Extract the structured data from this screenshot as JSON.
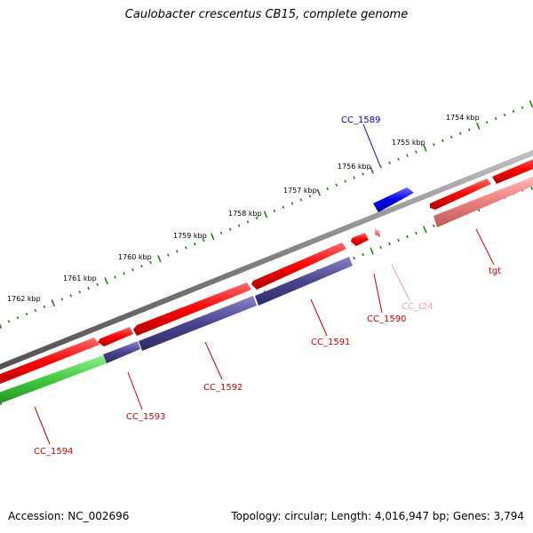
{
  "title": "Caulobacter crescentus CB15, complete genome",
  "footer": {
    "accession": "Accession: NC_002696",
    "summary": "Topology: circular; Length: 4,016,947 bp; Genes: 3,794"
  },
  "colors": {
    "backbone": "#808080",
    "ruler": "#2a7a1e",
    "gene_forward": "#e00000",
    "gene_reverse": "#e00000",
    "cds_blue": "#1a1ae6",
    "cds_purple": "#4a4490",
    "cds_green": "#3cc83c",
    "trna": "#f08080",
    "label_red": "#cc0000",
    "label_blue": "#0000cc",
    "label_pink": "#f4a0b8"
  },
  "ruler": {
    "tick_labels": [
      "1754 kbp",
      "1755 kbp",
      "1756 kbp",
      "1757 kbp",
      "1758 kbp",
      "1759 kbp",
      "1760 kbp",
      "1761 kbp",
      "1762 kbp"
    ]
  },
  "features": [
    {
      "id": "CC_1589",
      "track": "outer-top",
      "color": "cds_blue",
      "label_color": "label_blue"
    },
    {
      "id": "tgt",
      "track": "forward",
      "color": "gene_forward",
      "label_color": "label_red"
    },
    {
      "id": "CC_t24",
      "track": "forward",
      "color": "trna",
      "label_color": "label_pink"
    },
    {
      "id": "CC_1590",
      "track": "forward",
      "color": "gene_forward",
      "label_color": "label_red"
    },
    {
      "id": "CC_1591",
      "track": "reverse",
      "color": "cds_purple",
      "label_color": "label_red"
    },
    {
      "id": "CC_1592",
      "track": "reverse",
      "color": "cds_purple",
      "label_color": "label_red"
    },
    {
      "id": "CC_1593",
      "track": "reverse",
      "color": "cds_purple",
      "label_color": "label_red"
    },
    {
      "id": "CC_1594",
      "track": "reverse",
      "color": "cds_green",
      "label_color": "label_red"
    }
  ]
}
